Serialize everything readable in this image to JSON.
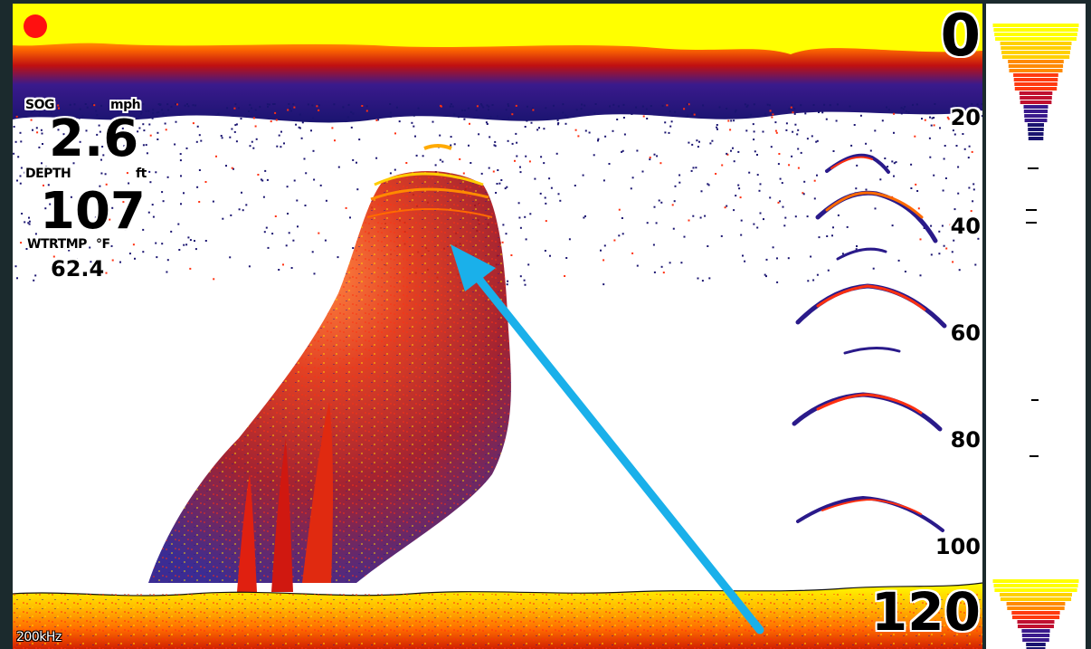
{
  "status": {
    "recording_indicator": "record-dot"
  },
  "readouts": {
    "sog": {
      "label": "SOG",
      "unit": "mph",
      "value": "2.6"
    },
    "depth": {
      "label": "DEPTH",
      "unit": "ft",
      "value": "107"
    },
    "water_temp": {
      "label": "WTRTMP",
      "unit": "°F",
      "value": "62.4"
    }
  },
  "depth_scale": {
    "top": "0",
    "ticks": [
      "20",
      "40",
      "60",
      "80",
      "100"
    ],
    "bottom": "120"
  },
  "frequency": "200kHz",
  "colors": {
    "frame": "#1b2a2d",
    "surface": "#ffff00",
    "strong": "#ff2a00",
    "weak": "#2a1a8a",
    "arrow": "#1ab0ea"
  }
}
